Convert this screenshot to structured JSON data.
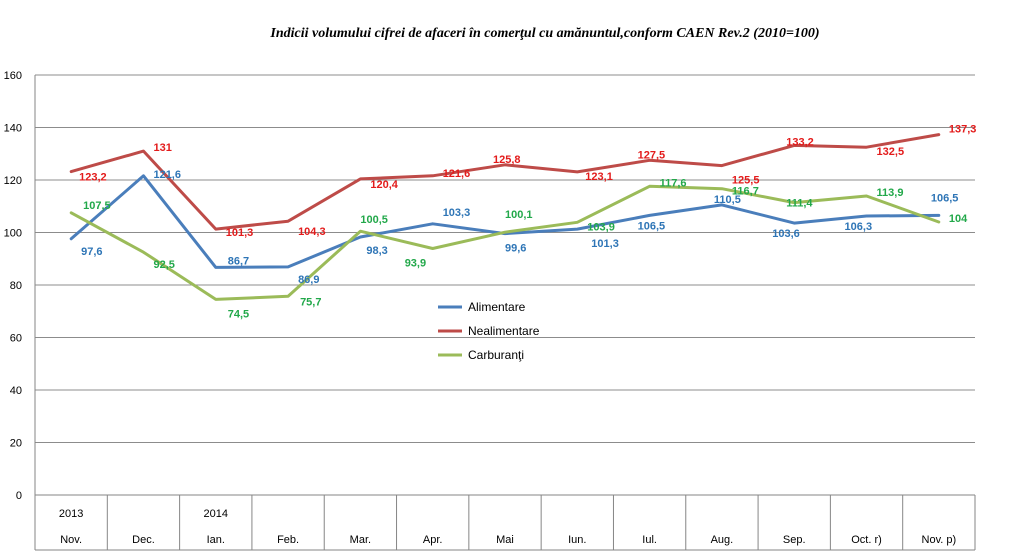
{
  "chart_data": {
    "type": "line",
    "title": "Indicii volumului cifrei de afaceri în comerţul cu amănuntul,conform CAEN Rev.2 (2010=100)",
    "xlabel": "",
    "ylabel": "",
    "ylim": [
      0,
      160
    ],
    "yticks": [
      0,
      20,
      40,
      60,
      80,
      100,
      120,
      140,
      160
    ],
    "grid": true,
    "legend_position": "center",
    "year_labels": [
      "2013",
      "",
      "2014",
      "",
      "",
      "",
      "",
      "",
      "",
      "",
      "",
      "",
      ""
    ],
    "categories": [
      "Nov.",
      "Dec.",
      "Ian.",
      "Feb.",
      "Mar.",
      "Apr.",
      "Mai",
      "Iun.",
      "Iul.",
      "Aug.",
      "Sep.",
      "Oct.  r)",
      "Nov.  p)"
    ],
    "series": [
      {
        "name": "Alimentare",
        "color": "#4a7ebb",
        "label_color": "#2e75b6",
        "values": [
          97.6,
          121.6,
          86.7,
          86.9,
          98.3,
          103.3,
          99.6,
          101.3,
          106.5,
          110.5,
          103.6,
          106.3,
          106.5
        ],
        "labels": [
          "97,6",
          "121,6",
          "86,7",
          "86,9",
          "98,3",
          "103,3",
          "99,6",
          "101,3",
          "106,5",
          "110,5",
          "103,6",
          "106,3",
          "106,5"
        ]
      },
      {
        "name": "Nealimentare",
        "color": "#be4b48",
        "label_color": "#e31b1b",
        "values": [
          123.2,
          131,
          101.3,
          104.3,
          120.4,
          121.6,
          125.8,
          123.1,
          127.5,
          125.5,
          133.2,
          132.5,
          137.3
        ],
        "labels": [
          "123,2",
          "131",
          "101,3",
          "104,3",
          "120,4",
          "121,6",
          "125,8",
          "123,1",
          "127,5",
          "125,5",
          "133,2",
          "132,5",
          "137,3"
        ]
      },
      {
        "name": "Carburanţi",
        "color": "#9bbb59",
        "label_color": "#22a84a",
        "values": [
          107.5,
          92.5,
          74.5,
          75.7,
          100.5,
          93.9,
          100.1,
          103.9,
          117.6,
          116.7,
          111.4,
          113.9,
          104
        ],
        "labels": [
          "107,5",
          "92,5",
          "74,5",
          "75,7",
          "100,5",
          "93,9",
          "100,1",
          "103,9",
          "117,6",
          "116,7",
          "111,4",
          "113,9",
          "104"
        ]
      }
    ]
  }
}
